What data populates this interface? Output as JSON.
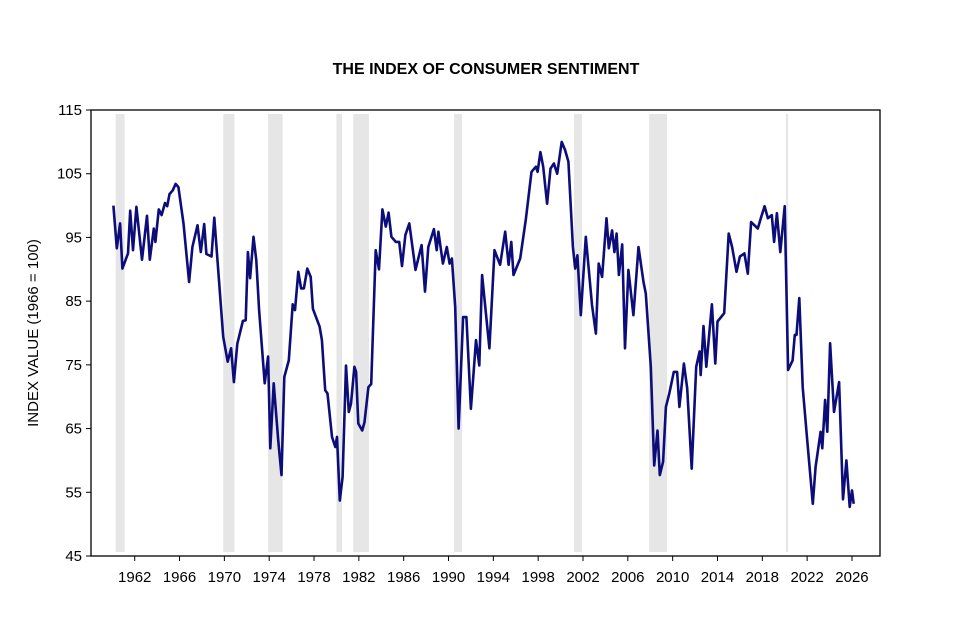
{
  "chart_data": {
    "type": "line",
    "title": "THE INDEX OF CONSUMER SENTIMENT",
    "xlabel": "",
    "ylabel": "INDEX VALUE (1966 = 100)",
    "ylim": [
      45,
      115
    ],
    "xlim": [
      1958.1,
      2028.5
    ],
    "yticks": [
      "45",
      "55",
      "65",
      "75",
      "85",
      "95",
      "105",
      "115"
    ],
    "xticks": [
      "1962",
      "1966",
      "1970",
      "1974",
      "1978",
      "1982",
      "1986",
      "1990",
      "1994",
      "1998",
      "2002",
      "2006",
      "2010",
      "2014",
      "2018",
      "2022",
      "2026"
    ],
    "grid": false,
    "line_color": "#0d0d7a",
    "recession_color": "#e6e6e6",
    "recessions": [
      [
        1960.3,
        1961.1
      ],
      [
        1969.9,
        1970.9
      ],
      [
        1973.9,
        1975.2
      ],
      [
        1980.0,
        1980.5
      ],
      [
        1981.5,
        1982.9
      ],
      [
        1990.5,
        1991.2
      ],
      [
        2001.2,
        2001.9
      ],
      [
        2007.9,
        2009.5
      ],
      [
        2020.1,
        2020.3
      ]
    ],
    "series": [
      {
        "x": [
          1960.1,
          1960.4,
          1960.7,
          1960.9,
          1961.4,
          1961.6,
          1961.85,
          1962.15,
          1962.65,
          1963.1,
          1963.35,
          1963.7,
          1963.85,
          1964.15,
          1964.4,
          1964.7,
          1964.9,
          1965.1,
          1965.4,
          1965.65,
          1965.9,
          1966.35,
          1966.85,
          1967.15,
          1967.6,
          1967.9,
          1968.2,
          1968.4,
          1968.85,
          1969.1,
          1969.9,
          1970.3,
          1970.6,
          1970.85,
          1971.15,
          1971.65,
          1971.9,
          1972.1,
          1972.3,
          1972.6,
          1972.85,
          1973.1,
          1973.6,
          1973.9,
          1974.1,
          1974.4,
          1974.8,
          1975.1,
          1975.35,
          1975.75,
          1976.1,
          1976.3,
          1976.6,
          1976.85,
          1977.1,
          1977.4,
          1977.7,
          1977.9,
          1978.5,
          1978.7,
          1979.0,
          1979.2,
          1979.6,
          1979.9,
          1980.05,
          1980.3,
          1980.55,
          1980.85,
          1981.1,
          1981.3,
          1981.6,
          1981.75,
          1981.95,
          1982.3,
          1982.5,
          1982.85,
          1983.1,
          1983.5,
          1983.8,
          1984.1,
          1984.4,
          1984.65,
          1984.9,
          1985.3,
          1985.6,
          1985.85,
          1986.15,
          1986.5,
          1987.05,
          1987.6,
          1987.9,
          1988.2,
          1988.7,
          1988.95,
          1989.1,
          1989.5,
          1989.85,
          1990.1,
          1990.3,
          1990.6,
          1990.9,
          1991.3,
          1991.6,
          1992.0,
          1992.45,
          1992.75,
          1993.0,
          1993.65,
          1994.1,
          1994.6,
          1995.06,
          1995.36,
          1995.6,
          1995.8,
          1996.4,
          1996.9,
          1997.4,
          1997.8,
          1997.95,
          1998.2,
          1998.45,
          1998.8,
          1999.1,
          1999.4,
          1999.7,
          2000.1,
          2000.4,
          2000.7,
          2001.1,
          2001.3,
          2001.5,
          2001.8,
          2002.25,
          2002.8,
          2003.15,
          2003.4,
          2003.7,
          2004.1,
          2004.3,
          2004.6,
          2004.8,
          2005.0,
          2005.2,
          2005.5,
          2005.75,
          2006.05,
          2006.5,
          2006.95,
          2007.4,
          2007.6,
          2008.05,
          2008.35,
          2008.65,
          2008.85,
          2009.15,
          2009.4,
          2009.7,
          2010.1,
          2010.4,
          2010.6,
          2011.0,
          2011.3,
          2011.7,
          2012.1,
          2012.4,
          2012.5,
          2012.75,
          2013.0,
          2013.5,
          2013.8,
          2014.0,
          2014.6,
          2015.0,
          2015.3,
          2015.7,
          2016.0,
          2016.4,
          2016.7,
          2017.0,
          2017.6,
          2017.9,
          2018.2,
          2018.5,
          2018.85,
          2019.05,
          2019.3,
          2019.6,
          2020.0,
          2020.3,
          2020.7,
          2020.9,
          2021.05,
          2021.3,
          2021.6,
          2022.0,
          2022.5,
          2022.75,
          2023.2,
          2023.35,
          2023.6,
          2023.8,
          2024.05,
          2024.4,
          2024.85,
          2025.2,
          2025.5,
          2025.8,
          2026.0,
          2026.15
        ],
        "values": [
          100,
          93.3,
          97.2,
          90.1,
          92.5,
          99.2,
          93,
          99.8,
          91.5,
          98.4,
          91.5,
          96.4,
          94.3,
          99.4,
          98.5,
          100.4,
          99.9,
          101.8,
          102.4,
          103.4,
          102.9,
          97.2,
          88.0,
          93.5,
          96.9,
          92.7,
          97.1,
          92.4,
          92.0,
          98.1,
          79.4,
          75.5,
          77.6,
          72.3,
          78.3,
          81.9,
          82,
          92.7,
          88.6,
          95.1,
          91.4,
          83.6,
          72.1,
          76.3,
          61.9,
          72.1,
          63.2,
          57.7,
          73.1,
          75.7,
          84.5,
          83.6,
          89.6,
          87,
          87,
          90.1,
          88.8,
          83.8,
          81,
          78.9,
          71,
          70.5,
          63.7,
          62.1,
          63.7,
          53.7,
          57.4,
          74.9,
          67.6,
          68.9,
          74.7,
          73.9,
          65.8,
          64.7,
          66,
          71.5,
          72,
          93,
          90,
          99.4,
          96.7,
          98.9,
          95.1,
          94.3,
          94.3,
          90.5,
          95.4,
          97.2,
          89.9,
          93.8,
          86.5,
          93.5,
          96.3,
          93,
          95.9,
          90.9,
          93.5,
          90.9,
          91.7,
          84.1,
          65,
          82.5,
          82.5,
          68.1,
          78.9,
          74.9,
          89.1,
          77.6,
          93,
          90.7,
          95.9,
          90.7,
          94.3,
          89.1,
          91.7,
          97.8,
          105.3,
          106.1,
          105.3,
          108.4,
          106.1,
          100.3,
          105.8,
          106.6,
          105,
          110,
          108.7,
          106.9,
          93.5,
          90.1,
          92.2,
          82.8,
          95.1,
          84.4,
          79.9,
          90.9,
          88.8,
          98,
          93.3,
          96.1,
          92.7,
          95.6,
          89.1,
          93.9,
          77.6,
          89.9,
          82.8,
          93.5,
          88,
          86.2,
          74.7,
          59.2,
          64.7,
          57.7,
          59.8,
          68.4,
          70.5,
          73.9,
          73.9,
          68.4,
          75.2,
          71.3,
          58.7,
          74.7,
          77.1,
          73.4,
          81.1,
          74.7,
          84.5,
          75.2,
          81.8,
          83.1,
          95.6,
          93.5,
          89.6,
          92,
          92.5,
          89.3,
          97.4,
          96.4,
          98.2,
          99.9,
          98,
          98.5,
          94.3,
          98.8,
          92.7,
          99.9,
          74.2,
          75.7,
          79.7,
          79.7,
          85.5,
          71.5,
          63.2,
          53.2,
          59,
          64.5,
          61.9,
          69.5,
          64.5,
          78.4,
          67.6,
          72.3,
          53.9,
          60,
          52.7,
          55.3,
          53.2
        ]
      }
    ]
  }
}
